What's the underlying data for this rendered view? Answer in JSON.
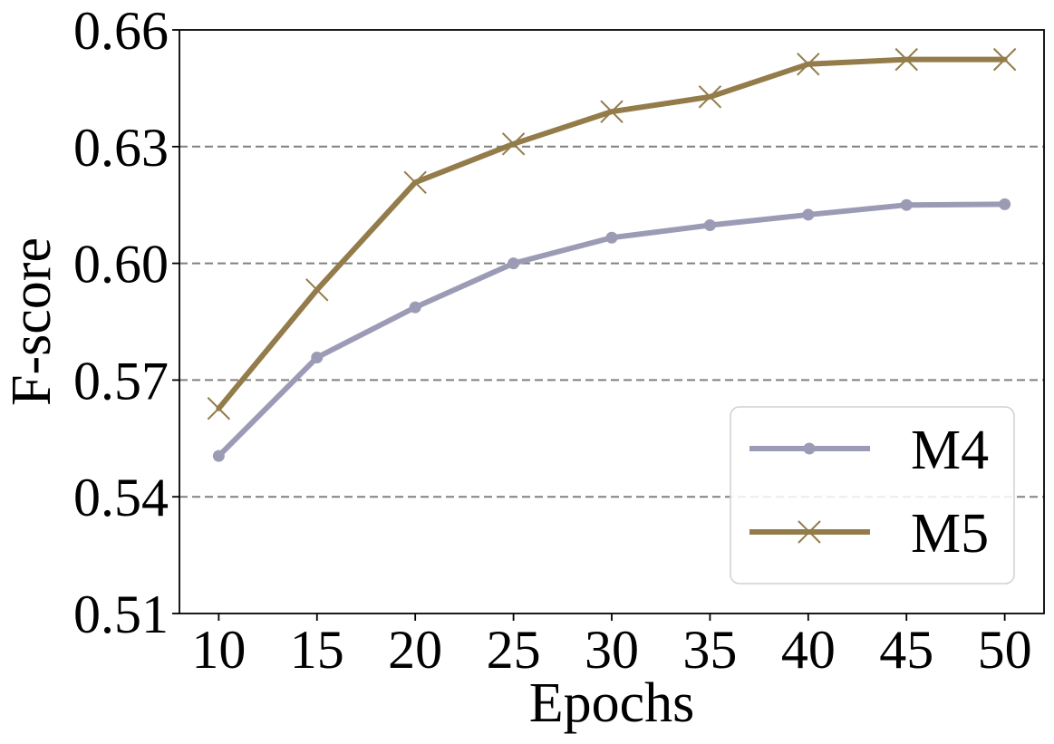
{
  "chart_data": {
    "type": "line",
    "title": "",
    "xlabel": "Epochs",
    "ylabel": "F-score",
    "x": [
      10,
      15,
      20,
      25,
      30,
      35,
      40,
      45,
      50
    ],
    "x_ticks": [
      "10",
      "15",
      "20",
      "25",
      "30",
      "35",
      "40",
      "45",
      "50"
    ],
    "y_ticks": [
      "0.51",
      "0.54",
      "0.57",
      "0.60",
      "0.63",
      "0.66"
    ],
    "y_tick_values": [
      0.51,
      0.54,
      0.57,
      0.6,
      0.63,
      0.66
    ],
    "ylim": [
      0.51,
      0.66
    ],
    "xlim": [
      8,
      52
    ],
    "grid": "horizontal dashed",
    "legend_position": "lower-right",
    "series": [
      {
        "name": "M4",
        "color": "#9b9bb5",
        "marker": "circle",
        "values": [
          0.5505,
          0.5758,
          0.5887,
          0.6,
          0.6066,
          0.6098,
          0.6125,
          0.615,
          0.6152
        ]
      },
      {
        "name": "M5",
        "color": "#937c4a",
        "marker": "x",
        "values": [
          0.5627,
          0.5932,
          0.6208,
          0.6307,
          0.639,
          0.6428,
          0.6512,
          0.6524,
          0.6524
        ]
      }
    ]
  }
}
